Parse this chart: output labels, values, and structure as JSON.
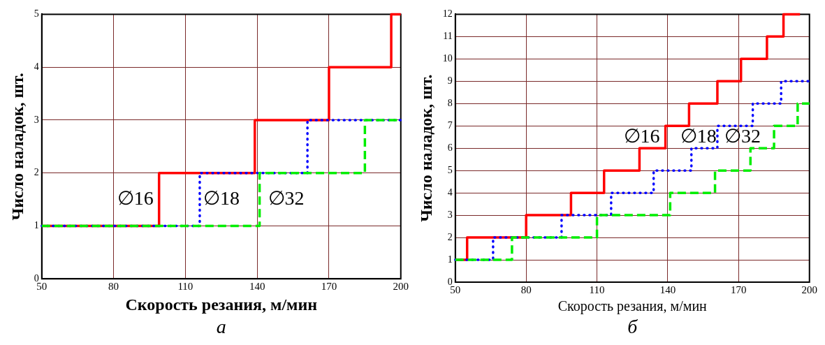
{
  "chart_data": [
    {
      "type": "step",
      "xlabel": "Скорость резания, м/мин",
      "ylabel": "Число наладок, шт.",
      "annotations": [
        "а"
      ],
      "xlim": [
        50,
        200
      ],
      "xticks": [
        50,
        80,
        110,
        140,
        170,
        200
      ],
      "ylim": [
        0,
        5
      ],
      "yticks": [
        0,
        1,
        2,
        3,
        4,
        5
      ],
      "grid": true,
      "marker": "none",
      "series": [
        {
          "name": "∅16",
          "color": "#ff0000",
          "line_style": "solid",
          "x": [
            50,
            99,
            139,
            170,
            196,
            200
          ],
          "values": [
            1,
            2,
            3,
            4,
            5,
            5
          ]
        },
        {
          "name": "∅18",
          "color": "#0000ff",
          "line_style": "dotted",
          "x": [
            50,
            116,
            161,
            200
          ],
          "values": [
            1,
            2,
            3,
            3
          ]
        },
        {
          "name": "∅32",
          "color": "#00ee00",
          "line_style": "dashed",
          "x": [
            50,
            141,
            185,
            200
          ],
          "values": [
            1,
            2,
            3,
            3
          ]
        }
      ]
    },
    {
      "type": "step",
      "xlabel": "Скорость резания, м/мин",
      "ylabel": "Число наладок, шт.",
      "annotations": [
        "б"
      ],
      "xlim": [
        50,
        200
      ],
      "xticks": [
        50,
        80,
        110,
        140,
        170,
        200
      ],
      "ylim": [
        0,
        12
      ],
      "yticks": [
        0,
        1,
        2,
        3,
        4,
        5,
        6,
        7,
        8,
        9,
        10,
        11,
        12
      ],
      "grid": true,
      "marker": "none",
      "series": [
        {
          "name": "∅16",
          "color": "#ff0000",
          "line_style": "solid",
          "x": [
            50,
            55,
            80,
            99,
            113,
            128,
            139,
            149,
            161,
            171,
            182,
            189,
            196
          ],
          "values": [
            1,
            2,
            3,
            4,
            5,
            6,
            7,
            8,
            9,
            10,
            11,
            12,
            12
          ]
        },
        {
          "name": "∅18",
          "color": "#0000ff",
          "line_style": "dotted",
          "x": [
            50,
            66,
            95,
            116,
            134,
            150,
            161,
            176,
            188,
            200
          ],
          "values": [
            1,
            2,
            3,
            4,
            5,
            6,
            7,
            8,
            9,
            9
          ]
        },
        {
          "name": "∅32",
          "color": "#00ee00",
          "line_style": "dashed",
          "x": [
            50,
            74,
            110,
            141,
            160,
            175,
            185,
            195,
            200
          ],
          "values": [
            1,
            2,
            3,
            4,
            5,
            6,
            7,
            8,
            8
          ]
        }
      ]
    }
  ]
}
